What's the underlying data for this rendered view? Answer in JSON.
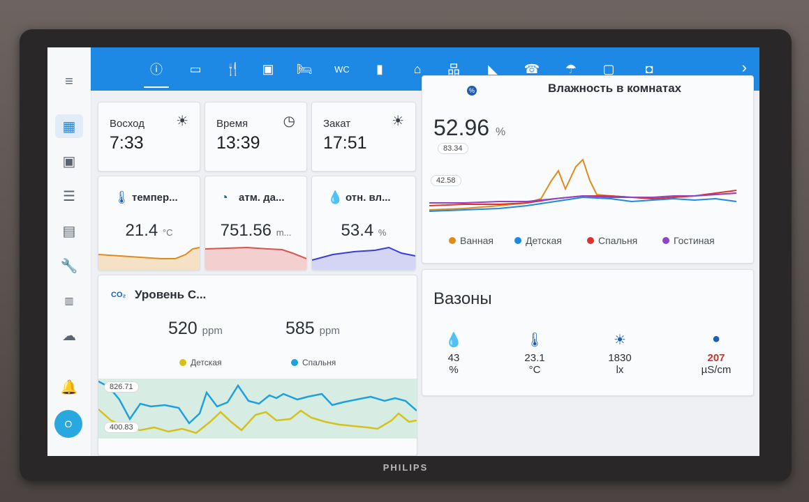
{
  "monitor": {
    "brand": "PHILIPS"
  },
  "sidebar": {
    "items": [
      {
        "icon": "menu-icon"
      },
      {
        "icon": "dashboard-icon"
      },
      {
        "icon": "map-icon"
      },
      {
        "icon": "logbook-icon"
      },
      {
        "icon": "history-icon"
      },
      {
        "icon": "wrench-icon"
      },
      {
        "icon": "hacs-icon"
      },
      {
        "icon": "cloud-icon"
      },
      {
        "icon": "bell-icon"
      }
    ],
    "avatar_initial": "O"
  },
  "topbar": {
    "tabs": [
      "info-icon",
      "tv-icon",
      "kitchen-icon",
      "living-icon",
      "bed-icon",
      "WC",
      "battery-icon",
      "home-icon",
      "network-icon",
      "camera-icon",
      "phone-icon",
      "weather-icon",
      "chip-icon",
      "system-icon"
    ],
    "wc_label": "WC"
  },
  "sun": {
    "sunrise": {
      "label": "Восход",
      "value": "7:33"
    },
    "time": {
      "label": "Время",
      "value": "13:39"
    },
    "sunset": {
      "label": "Закат",
      "value": "17:51"
    }
  },
  "sensors": {
    "temp": {
      "title": "темпер...",
      "value": "21.4",
      "unit": "°C",
      "color": "#e08a1e"
    },
    "pressure": {
      "title": "атм. да...",
      "value": "751.56",
      "unit": "m...",
      "color": "#d9534f"
    },
    "humidity": {
      "title": "отн. вл...",
      "value": "53.4",
      "unit": "%",
      "color": "#3b3bd6"
    }
  },
  "co2": {
    "title": "Уровень С...",
    "icon_text": "CO₂",
    "kids": {
      "value": "520",
      "unit": "ppm",
      "name": "Детская",
      "color": "#d4c21a"
    },
    "bedroom": {
      "value": "585",
      "unit": "ppm",
      "name": "Спальня",
      "color": "#1ea0e0"
    },
    "max_label": "826.71",
    "min_label": "400.83"
  },
  "humidity_rooms": {
    "title": "Влажность в комнатах",
    "value": "52.96",
    "unit": "%",
    "max_label": "83.34",
    "min_label": "42.58",
    "legend": [
      {
        "name": "Ванная",
        "color": "#e08a1e"
      },
      {
        "name": "Детская",
        "color": "#1e88e5"
      },
      {
        "name": "Спальня",
        "color": "#d9342f"
      },
      {
        "name": "Гостиная",
        "color": "#8e44c8"
      }
    ]
  },
  "plants": {
    "title": "Вазоны",
    "items": [
      {
        "icon": "water-drop-icon",
        "value": "43",
        "unit": "%",
        "color": "#2b2f36"
      },
      {
        "icon": "thermometer-icon",
        "value": "23.1",
        "unit": "°C",
        "color": "#2b2f36"
      },
      {
        "icon": "sun-icon",
        "value": "1830",
        "unit": "lx",
        "color": "#2b2f36"
      },
      {
        "icon": "conductivity-icon",
        "value": "207",
        "unit": "µS/cm",
        "color": "#c0392b"
      }
    ]
  }
}
